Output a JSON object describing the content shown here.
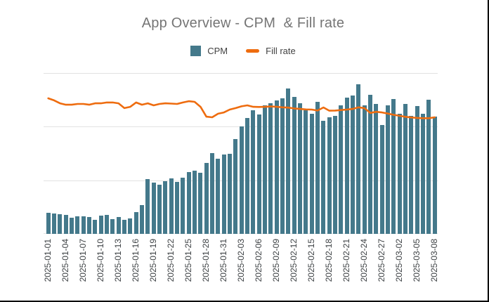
{
  "title": "App Overview - CPM  & Fill rate",
  "legend": {
    "items": [
      {
        "label": "CPM",
        "swatch": "bar",
        "color": "#44798B"
      },
      {
        "label": "Fill rate",
        "swatch": "line",
        "color": "#EE6C0F"
      }
    ]
  },
  "colors": {
    "bar": "#44798B",
    "line": "#EE6C0F",
    "title_text": "#757575",
    "tick_text": "#3c4043",
    "gridline": "#e2e2e2",
    "background": "#ffffff"
  },
  "chart_data": {
    "type": "bar",
    "subtype": "combo-bar-line",
    "title": "App Overview - CPM  & Fill rate",
    "xlabel": "",
    "ylabel": "",
    "y_axis_labels_visible": false,
    "y_units": "relative scale 0-100 = percent of plot height (source chart shows no y-axis labels)",
    "ylim": [
      0,
      100
    ],
    "grid": true,
    "gridline_values": [
      100,
      66.7,
      33.3,
      0
    ],
    "legend_position": "top",
    "x_tick_every": 3,
    "x": [
      "2025-01-01",
      "2025-01-02",
      "2025-01-03",
      "2025-01-04",
      "2025-01-05",
      "2025-01-06",
      "2025-01-07",
      "2025-01-08",
      "2025-01-09",
      "2025-01-10",
      "2025-01-11",
      "2025-01-12",
      "2025-01-13",
      "2025-01-14",
      "2025-01-15",
      "2025-01-16",
      "2025-01-17",
      "2025-01-18",
      "2025-01-19",
      "2025-01-20",
      "2025-01-21",
      "2025-01-22",
      "2025-01-23",
      "2025-01-24",
      "2025-01-25",
      "2025-01-26",
      "2025-01-27",
      "2025-01-28",
      "2025-01-29",
      "2025-01-30",
      "2025-01-31",
      "2025-02-01",
      "2025-02-02",
      "2025-02-03",
      "2025-02-04",
      "2025-02-05",
      "2025-02-06",
      "2025-02-07",
      "2025-02-08",
      "2025-02-09",
      "2025-02-10",
      "2025-02-11",
      "2025-02-12",
      "2025-02-13",
      "2025-02-14",
      "2025-02-15",
      "2025-02-16",
      "2025-02-17",
      "2025-02-18",
      "2025-02-19",
      "2025-02-20",
      "2025-02-21",
      "2025-02-22",
      "2025-02-23",
      "2025-02-24",
      "2025-02-25",
      "2025-02-26",
      "2025-02-27",
      "2025-02-28",
      "2025-03-01",
      "2025-03-02",
      "2025-03-03",
      "2025-03-04",
      "2025-03-05",
      "2025-03-06",
      "2025-03-07",
      "2025-03-08"
    ],
    "series": [
      {
        "name": "CPM",
        "type": "bar",
        "color": "#44798B",
        "values": [
          13.0,
          12.7,
          12.2,
          11.9,
          10.0,
          10.8,
          10.8,
          10.5,
          8.9,
          11.3,
          11.8,
          9.3,
          10.5,
          8.7,
          9.6,
          13.5,
          17.9,
          34.1,
          31.9,
          30.6,
          32.6,
          34.5,
          32.2,
          34.8,
          38.4,
          39.4,
          38.0,
          44.2,
          50.1,
          46.7,
          49.3,
          49.7,
          58.8,
          66.8,
          71.9,
          77.0,
          74.4,
          79.9,
          81.4,
          83.1,
          84.3,
          90.4,
          85.0,
          81.4,
          76.7,
          74.8,
          82.1,
          70.4,
          72.6,
          73.4,
          79.9,
          84.6,
          86.0,
          93.0,
          79.9,
          86.5,
          80.7,
          67.6,
          79.9,
          84.0,
          74.8,
          80.7,
          73.4,
          79.6,
          74.8,
          83.5,
          72.9
        ]
      },
      {
        "name": "Fill rate",
        "type": "line",
        "color": "#EE6C0F",
        "values": [
          84.3,
          83.0,
          81.2,
          80.3,
          80.3,
          80.8,
          80.8,
          80.3,
          81.2,
          81.2,
          81.7,
          81.7,
          81.2,
          78.2,
          79.0,
          81.7,
          80.3,
          81.2,
          79.9,
          80.8,
          81.2,
          81.0,
          80.8,
          81.7,
          82.5,
          82.1,
          79.0,
          72.9,
          72.5,
          74.7,
          75.5,
          77.3,
          78.2,
          79.3,
          79.9,
          79.0,
          78.9,
          79.0,
          79.2,
          79.0,
          78.7,
          78.5,
          78.0,
          77.7,
          77.4,
          77.3,
          76.7,
          78.6,
          76.6,
          76.7,
          77.0,
          77.3,
          77.7,
          78.7,
          78.2,
          75.2,
          75.9,
          75.5,
          74.8,
          74.0,
          73.4,
          72.8,
          72.4,
          72.1,
          71.9,
          71.9,
          72.5
        ]
      }
    ]
  }
}
